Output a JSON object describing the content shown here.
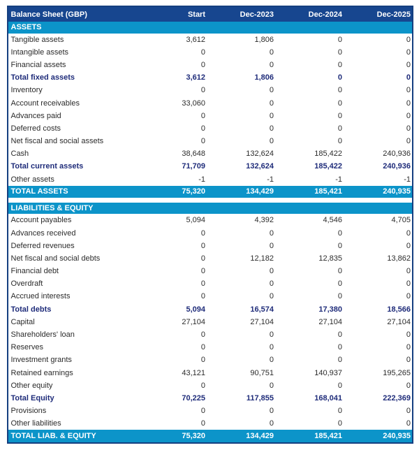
{
  "title": "Balance Sheet (GBP)",
  "colors": {
    "header_bg": "#17468F",
    "table_border": "#153F80",
    "section_bg": "#0C94C9",
    "subtotal_text": "#1F2C7A",
    "body_text": "#2B2B2B",
    "header_text": "#FFFFFF"
  },
  "chart_data": {
    "type": "table",
    "title": "Balance Sheet (GBP)",
    "columns": [
      "Balance Sheet (GBP)",
      "Start",
      "Dec-2023",
      "Dec-2024",
      "Dec-2025"
    ],
    "sections": [
      {
        "title": "ASSETS",
        "rows": [
          {
            "label": "Tangible assets",
            "values": [
              "3,612",
              "1,806",
              "0",
              "0"
            ],
            "style": "normal"
          },
          {
            "label": "Intangible assets",
            "values": [
              "0",
              "0",
              "0",
              "0"
            ],
            "style": "normal"
          },
          {
            "label": "Financial assets",
            "values": [
              "0",
              "0",
              "0",
              "0"
            ],
            "style": "normal"
          },
          {
            "label": "Total fixed assets",
            "values": [
              "3,612",
              "1,806",
              "0",
              "0"
            ],
            "style": "subtotal"
          },
          {
            "label": "Inventory",
            "values": [
              "0",
              "0",
              "0",
              "0"
            ],
            "style": "normal"
          },
          {
            "label": "Account receivables",
            "values": [
              "33,060",
              "0",
              "0",
              "0"
            ],
            "style": "normal"
          },
          {
            "label": "Advances paid",
            "values": [
              "0",
              "0",
              "0",
              "0"
            ],
            "style": "normal"
          },
          {
            "label": "Deferred costs",
            "values": [
              "0",
              "0",
              "0",
              "0"
            ],
            "style": "normal"
          },
          {
            "label": "Net fiscal and social assets",
            "values": [
              "0",
              "0",
              "0",
              "0"
            ],
            "style": "normal"
          },
          {
            "label": "Cash",
            "values": [
              "38,648",
              "132,624",
              "185,422",
              "240,936"
            ],
            "style": "normal"
          },
          {
            "label": "Total current assets",
            "values": [
              "71,709",
              "132,624",
              "185,422",
              "240,936"
            ],
            "style": "subtotal"
          },
          {
            "label": "Other assets",
            "values": [
              "-1",
              "-1",
              "-1",
              "-1"
            ],
            "style": "normal"
          }
        ],
        "total": {
          "label": "TOTAL ASSETS",
          "values": [
            "75,320",
            "134,429",
            "185,421",
            "240,935"
          ]
        }
      },
      {
        "title": "LIABILITIES & EQUITY",
        "rows": [
          {
            "label": "Account payables",
            "values": [
              "5,094",
              "4,392",
              "4,546",
              "4,705"
            ],
            "style": "normal"
          },
          {
            "label": "Advances received",
            "values": [
              "0",
              "0",
              "0",
              "0"
            ],
            "style": "normal"
          },
          {
            "label": "Deferred revenues",
            "values": [
              "0",
              "0",
              "0",
              "0"
            ],
            "style": "normal"
          },
          {
            "label": "Net fiscal and social debts",
            "values": [
              "0",
              "12,182",
              "12,835",
              "13,862"
            ],
            "style": "normal"
          },
          {
            "label": "Financial debt",
            "values": [
              "0",
              "0",
              "0",
              "0"
            ],
            "style": "normal"
          },
          {
            "label": "Overdraft",
            "values": [
              "0",
              "0",
              "0",
              "0"
            ],
            "style": "normal"
          },
          {
            "label": "Accrued interests",
            "values": [
              "0",
              "0",
              "0",
              "0"
            ],
            "style": "normal"
          },
          {
            "label": "Total debts",
            "values": [
              "5,094",
              "16,574",
              "17,380",
              "18,566"
            ],
            "style": "subtotal"
          },
          {
            "label": "Capital",
            "values": [
              "27,104",
              "27,104",
              "27,104",
              "27,104"
            ],
            "style": "normal"
          },
          {
            "label": "Shareholders' loan",
            "values": [
              "0",
              "0",
              "0",
              "0"
            ],
            "style": "normal"
          },
          {
            "label": "Reserves",
            "values": [
              "0",
              "0",
              "0",
              "0"
            ],
            "style": "normal"
          },
          {
            "label": "Investment grants",
            "values": [
              "0",
              "0",
              "0",
              "0"
            ],
            "style": "normal"
          },
          {
            "label": "Retained earnings",
            "values": [
              "43,121",
              "90,751",
              "140,937",
              "195,265"
            ],
            "style": "normal"
          },
          {
            "label": "Other equity",
            "values": [
              "0",
              "0",
              "0",
              "0"
            ],
            "style": "normal"
          },
          {
            "label": "Total Equity",
            "values": [
              "70,225",
              "117,855",
              "168,041",
              "222,369"
            ],
            "style": "subtotal"
          },
          {
            "label": "Provisions",
            "values": [
              "0",
              "0",
              "0",
              "0"
            ],
            "style": "normal"
          },
          {
            "label": "Other liabilities",
            "values": [
              "0",
              "0",
              "0",
              "0"
            ],
            "style": "normal"
          }
        ],
        "total": {
          "label": "TOTAL LIAB. & EQUITY",
          "values": [
            "75,320",
            "134,429",
            "185,421",
            "240,935"
          ]
        }
      }
    ]
  }
}
